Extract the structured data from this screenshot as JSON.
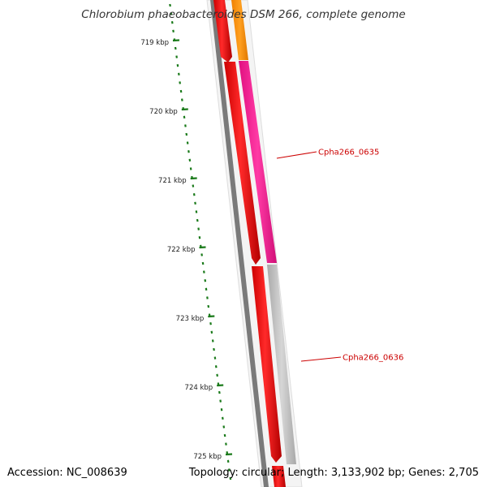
{
  "header": {
    "title": "Chlorobium phaeobacteroides DSM 266, complete genome"
  },
  "footer": {
    "accession": "Accession: NC_008639",
    "summary": "Topology: circular; Length: 3,133,902 bp; Genes: 2,705"
  },
  "ruler": {
    "tick_labels": [
      "719 kbp",
      "720 kbp",
      "721 kbp",
      "722 kbp",
      "723 kbp",
      "724 kbp",
      "725 kbp"
    ],
    "color": "#1a7a1a"
  },
  "genes": [
    {
      "label": "Cpha266_0635",
      "strand_color": "#ff1493"
    },
    {
      "label": "Cpha266_0636",
      "strand_color": "#bbbbbb"
    }
  ],
  "colors": {
    "strand_red": "#ff0000",
    "orange": "#ff8c00",
    "magenta": "#ff1493",
    "gray_feature": "#c0c0c0",
    "backbone": "#808080",
    "label_red": "#cc0000"
  }
}
